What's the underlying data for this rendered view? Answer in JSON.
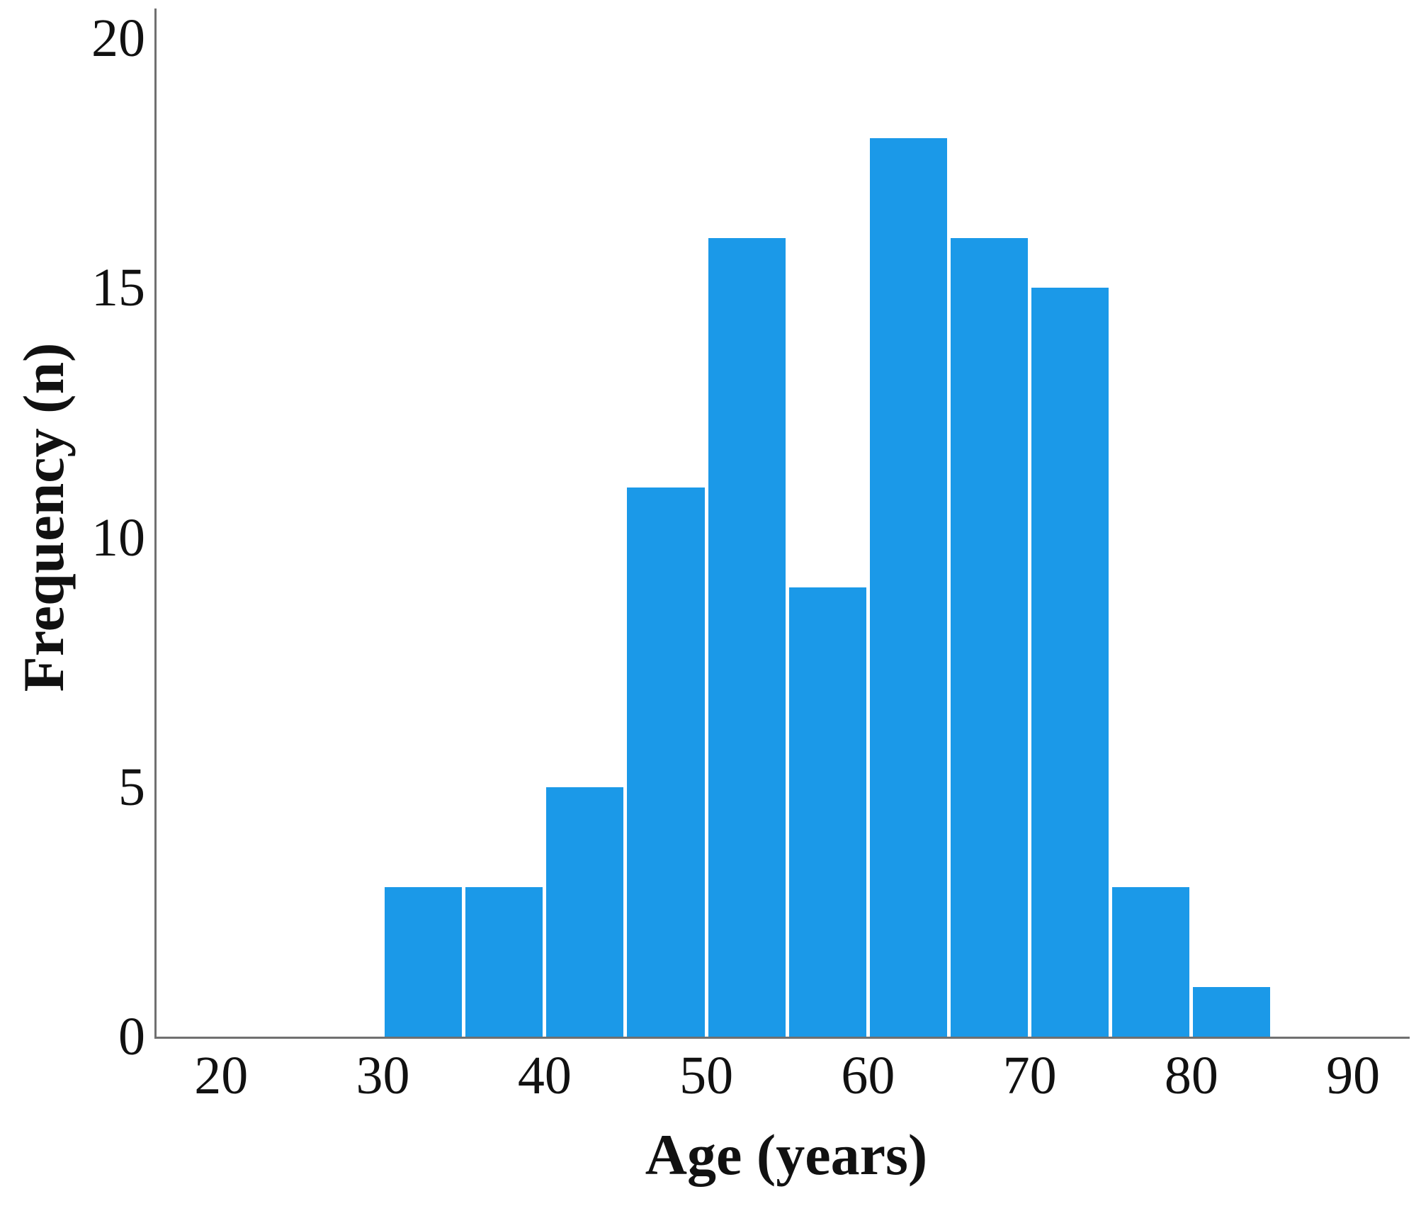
{
  "chart_data": {
    "type": "bar",
    "subtype": "histogram",
    "title": "",
    "xlabel": "Age (years)",
    "ylabel": "Frequency (n)",
    "bin_width": 5,
    "bins": [
      {
        "start": 30,
        "end": 35,
        "count": 3
      },
      {
        "start": 35,
        "end": 40,
        "count": 3
      },
      {
        "start": 40,
        "end": 45,
        "count": 5
      },
      {
        "start": 45,
        "end": 50,
        "count": 11
      },
      {
        "start": 50,
        "end": 55,
        "count": 16
      },
      {
        "start": 55,
        "end": 60,
        "count": 9
      },
      {
        "start": 60,
        "end": 65,
        "count": 18
      },
      {
        "start": 65,
        "end": 70,
        "count": 16
      },
      {
        "start": 70,
        "end": 75,
        "count": 15
      },
      {
        "start": 75,
        "end": 80,
        "count": 3
      },
      {
        "start": 80,
        "end": 85,
        "count": 1
      }
    ],
    "x_ticks": [
      20,
      30,
      40,
      50,
      60,
      70,
      80,
      90
    ],
    "y_ticks": [
      0,
      5,
      10,
      15,
      20
    ],
    "xlim": [
      16,
      93.5
    ],
    "ylim": [
      0,
      20.6
    ],
    "grid": false,
    "legend": false,
    "bar_color": "#1b99e8",
    "bar_gap_color": "#ffffff",
    "axis_color": "#707070",
    "text_color": "#111111"
  }
}
